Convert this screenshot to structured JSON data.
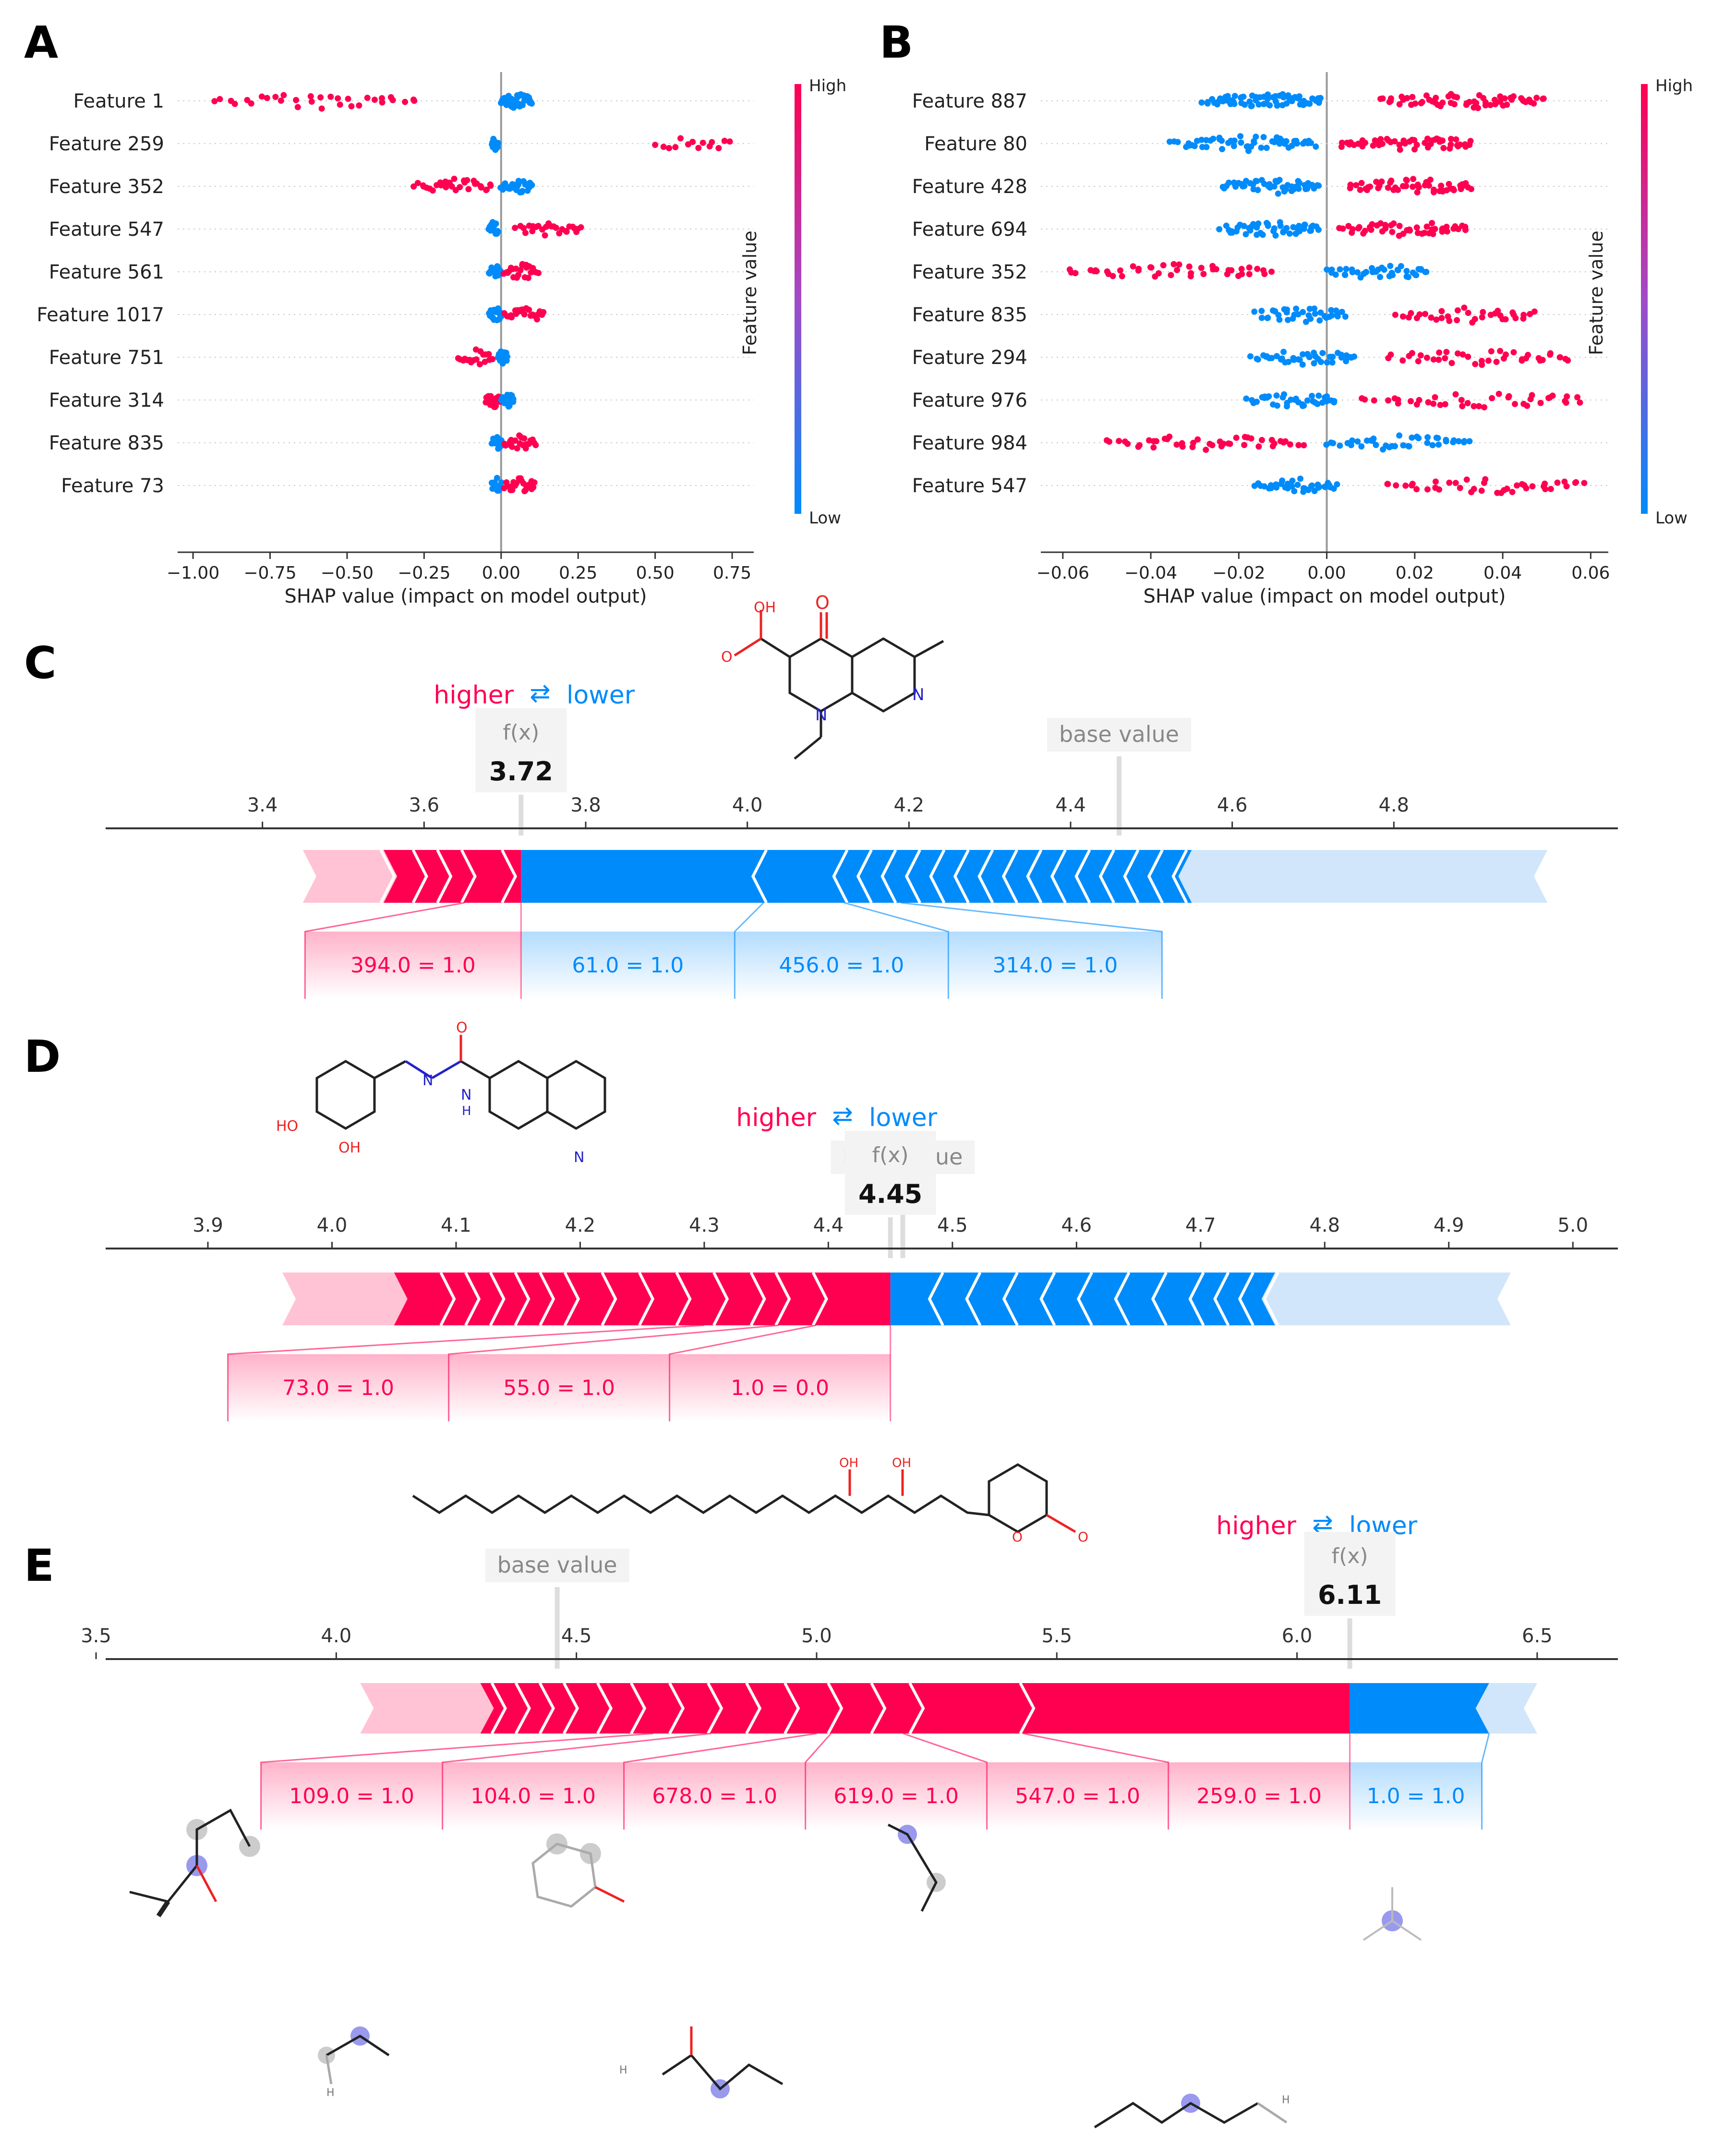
{
  "colors": {
    "pos": "#ff0051",
    "neg": "#008bfb",
    "pos_light": "#ffc3d5",
    "neg_light": "#d1e6fa",
    "axis": "#333333",
    "grid": "#cccccc",
    "muted": "#888888"
  },
  "panel_labels": [
    "A",
    "B",
    "C",
    "D",
    "E"
  ],
  "chart_data": [
    {
      "panel": "A",
      "type": "scatter",
      "subtype": "shap-beeswarm",
      "features": [
        "Feature 1",
        "Feature 259",
        "Feature 352",
        "Feature 547",
        "Feature 561",
        "Feature 1017",
        "Feature 751",
        "Feature 314",
        "Feature 835",
        "Feature 73"
      ],
      "clusters": [
        [
          {
            "c": "pos",
            "from": -0.93,
            "to": -0.28,
            "n": 32
          },
          {
            "c": "neg",
            "from": 0.0,
            "to": 0.1,
            "n": 40
          }
        ],
        [
          {
            "c": "neg",
            "from": -0.03,
            "to": -0.01,
            "n": 14
          },
          {
            "c": "pos",
            "from": 0.5,
            "to": 0.74,
            "n": 14
          }
        ],
        [
          {
            "c": "pos",
            "from": -0.28,
            "to": -0.03,
            "n": 30
          },
          {
            "c": "neg",
            "from": 0.0,
            "to": 0.1,
            "n": 28
          }
        ],
        [
          {
            "c": "neg",
            "from": -0.04,
            "to": -0.01,
            "n": 14
          },
          {
            "c": "pos",
            "from": 0.05,
            "to": 0.26,
            "n": 26
          }
        ],
        [
          {
            "c": "neg",
            "from": -0.04,
            "to": 0.0,
            "n": 18
          },
          {
            "c": "pos",
            "from": 0.01,
            "to": 0.12,
            "n": 24
          }
        ],
        [
          {
            "c": "neg",
            "from": -0.04,
            "to": 0.0,
            "n": 18
          },
          {
            "c": "pos",
            "from": 0.01,
            "to": 0.14,
            "n": 24
          }
        ],
        [
          {
            "c": "pos",
            "from": -0.14,
            "to": -0.03,
            "n": 18
          },
          {
            "c": "neg",
            "from": -0.01,
            "to": 0.02,
            "n": 16
          }
        ],
        [
          {
            "c": "pos",
            "from": -0.05,
            "to": 0.0,
            "n": 24
          },
          {
            "c": "neg",
            "from": 0.0,
            "to": 0.04,
            "n": 20
          }
        ],
        [
          {
            "c": "neg",
            "from": -0.03,
            "to": 0.0,
            "n": 16
          },
          {
            "c": "pos",
            "from": 0.01,
            "to": 0.11,
            "n": 22
          }
        ],
        [
          {
            "c": "neg",
            "from": -0.03,
            "to": 0.0,
            "n": 16
          },
          {
            "c": "pos",
            "from": 0.01,
            "to": 0.11,
            "n": 22
          }
        ]
      ],
      "xlim": [
        -1.05,
        0.82
      ],
      "xticks": [
        -1.0,
        -0.75,
        -0.5,
        -0.25,
        0.0,
        0.25,
        0.5,
        0.75
      ],
      "xtick_labels": [
        "−1.00",
        "−0.75",
        "−0.50",
        "−0.25",
        "0.00",
        "0.25",
        "0.50",
        "0.75"
      ],
      "xlabel": "SHAP value (impact on model output)",
      "colorbar_title": "Feature value",
      "colorbar_high": "High",
      "colorbar_low": "Low"
    },
    {
      "panel": "B",
      "type": "scatter",
      "subtype": "shap-beeswarm",
      "features": [
        "Feature 887",
        "Feature 80",
        "Feature 428",
        "Feature 694",
        "Feature 352",
        "Feature 835",
        "Feature 294",
        "Feature 976",
        "Feature 984",
        "Feature 547"
      ],
      "clusters": [
        [
          {
            "c": "neg",
            "from": -0.028,
            "to": -0.001,
            "n": 70
          },
          {
            "c": "pos",
            "from": 0.012,
            "to": 0.049,
            "n": 60
          }
        ],
        [
          {
            "c": "neg",
            "from": -0.035,
            "to": -0.003,
            "n": 56
          },
          {
            "c": "pos",
            "from": 0.003,
            "to": 0.033,
            "n": 52
          }
        ],
        [
          {
            "c": "neg",
            "from": -0.024,
            "to": -0.002,
            "n": 48
          },
          {
            "c": "pos",
            "from": 0.005,
            "to": 0.033,
            "n": 50
          }
        ],
        [
          {
            "c": "neg",
            "from": -0.024,
            "to": -0.002,
            "n": 48
          },
          {
            "c": "pos",
            "from": 0.003,
            "to": 0.032,
            "n": 48
          }
        ],
        [
          {
            "c": "pos",
            "from": -0.059,
            "to": -0.013,
            "n": 44
          },
          {
            "c": "neg",
            "from": 0.0,
            "to": 0.023,
            "n": 40
          }
        ],
        [
          {
            "c": "neg",
            "from": -0.016,
            "to": 0.004,
            "n": 36
          },
          {
            "c": "pos",
            "from": 0.016,
            "to": 0.047,
            "n": 34
          }
        ],
        [
          {
            "c": "neg",
            "from": -0.017,
            "to": 0.006,
            "n": 40
          },
          {
            "c": "pos",
            "from": 0.014,
            "to": 0.055,
            "n": 40
          }
        ],
        [
          {
            "c": "neg",
            "from": -0.018,
            "to": 0.002,
            "n": 36
          },
          {
            "c": "pos",
            "from": 0.008,
            "to": 0.058,
            "n": 40
          }
        ],
        [
          {
            "c": "pos",
            "from": -0.05,
            "to": -0.006,
            "n": 44
          },
          {
            "c": "neg",
            "from": 0.0,
            "to": 0.032,
            "n": 40
          }
        ],
        [
          {
            "c": "neg",
            "from": -0.016,
            "to": 0.002,
            "n": 36
          },
          {
            "c": "pos",
            "from": 0.013,
            "to": 0.058,
            "n": 40
          }
        ]
      ],
      "xlim": [
        -0.065,
        0.064
      ],
      "xticks": [
        -0.06,
        -0.04,
        -0.02,
        0.0,
        0.02,
        0.04,
        0.06
      ],
      "xtick_labels": [
        "−0.06",
        "−0.04",
        "−0.02",
        "0.00",
        "0.02",
        "0.04",
        "0.06"
      ],
      "xlabel": "SHAP value (impact on model output)",
      "colorbar_title": "Feature value",
      "colorbar_high": "High",
      "colorbar_low": "Low"
    },
    {
      "panel": "C",
      "type": "bar",
      "subtype": "shap-force",
      "legend_higher": "higher",
      "legend_arrows": "⇄",
      "legend_lower": "lower",
      "fx_label": "f(x)",
      "fx_value": 3.72,
      "fx_text": "3.72",
      "base_label": "base value",
      "base_value": 4.46,
      "axis_min": 3.2,
      "axis_max": 5.0,
      "ticks": [
        3.4,
        3.6,
        3.8,
        4.0,
        4.2,
        4.4,
        4.6,
        4.8
      ],
      "tick_labels": [
        "3.4",
        "3.6",
        "3.8",
        "4.0",
        "4.2",
        "4.4",
        "4.6",
        "4.8"
      ],
      "pos_range": [
        3.45,
        3.72
      ],
      "neg_range": [
        3.72,
        4.99
      ],
      "pos_light_until": 3.55,
      "neg_light_from": 4.55,
      "pos_segments": [
        3.55,
        3.59,
        3.62,
        3.65,
        3.7
      ],
      "neg_segments": [
        4.02,
        4.12,
        4.15,
        4.18,
        4.21,
        4.24,
        4.27,
        4.3,
        4.33,
        4.36,
        4.39,
        4.42,
        4.45,
        4.48,
        4.51,
        4.54
      ],
      "pos_labels": [
        {
          "text": "394.0 = 1.0",
          "val": 3.65
        }
      ],
      "neg_labels": [
        {
          "text": "61.0 = 1.0",
          "val": 4.02
        },
        {
          "text": "456.0 = 1.0",
          "val": 4.12
        },
        {
          "text": "314.0 = 1.0",
          "val": 4.19
        }
      ]
    },
    {
      "panel": "D",
      "type": "bar",
      "subtype": "shap-force",
      "legend_higher": "higher",
      "legend_arrows": "⇄",
      "legend_lower": "lower",
      "fx_label": "f(x)",
      "fx_value": 4.45,
      "fx_text": "4.45",
      "base_label": "base value",
      "base_value": 4.46,
      "axis_min": 3.77,
      "axis_max": 5.08,
      "ticks": [
        3.9,
        4.0,
        4.1,
        4.2,
        4.3,
        4.4,
        4.5,
        4.6,
        4.7,
        4.8,
        4.9,
        5.0
      ],
      "tick_labels": [
        "3.9",
        "4.0",
        "4.1",
        "4.2",
        "4.3",
        "4.4",
        "4.5",
        "4.6",
        "4.7",
        "4.8",
        "4.9",
        "5.0"
      ],
      "pos_range": [
        3.96,
        4.45
      ],
      "neg_range": [
        4.45,
        4.95
      ],
      "pos_light_until": 4.05,
      "neg_light_from": 4.76,
      "pos_segments": [
        4.09,
        4.11,
        4.13,
        4.15,
        4.17,
        4.19,
        4.22,
        4.25,
        4.28,
        4.31,
        4.34,
        4.36,
        4.39
      ],
      "neg_segments": [
        4.49,
        4.52,
        4.55,
        4.58,
        4.61,
        4.64,
        4.67,
        4.7,
        4.72,
        4.74,
        4.76
      ],
      "pos_labels": [
        {
          "text": "73.0 = 1.0",
          "val": 4.3
        },
        {
          "text": "55.0 = 1.0",
          "val": 4.36
        },
        {
          "text": "1.0 = 0.0",
          "val": 4.39
        }
      ],
      "neg_labels": []
    },
    {
      "panel": "E",
      "type": "bar",
      "subtype": "shap-force",
      "legend_higher": "higher",
      "legend_arrows": "⇄",
      "legend_lower": "lower",
      "fx_label": "f(x)",
      "fx_value": 6.11,
      "fx_text": "6.11",
      "base_label": "base value",
      "base_value": 4.46,
      "axis_min": 3.4,
      "axis_max": 6.76,
      "ticks": [
        3.5,
        4.0,
        4.5,
        5.0,
        5.5,
        6.0,
        6.5
      ],
      "tick_labels": [
        "3.5",
        "4.0",
        "4.5",
        "5.0",
        "5.5",
        "6.0",
        "6.5"
      ],
      "pos_range": [
        4.05,
        6.11
      ],
      "neg_range": [
        6.11,
        6.5
      ],
      "pos_light_until": 4.3,
      "neg_light_from": 6.4,
      "pos_segments": [
        4.33,
        4.38,
        4.43,
        4.48,
        4.55,
        4.62,
        4.7,
        4.78,
        4.86,
        4.94,
        5.03,
        5.12,
        5.2,
        5.43
      ],
      "neg_segments": [],
      "pos_labels": [
        {
          "text": "109.0 = 1.0",
          "val": 4.66
        },
        {
          "text": "104.0 = 1.0",
          "val": 4.78
        },
        {
          "text": "678.0 = 1.0",
          "val": 5.0
        },
        {
          "text": "619.0 = 1.0",
          "val": 5.03
        },
        {
          "text": "547.0 = 1.0",
          "val": 5.18
        },
        {
          "text": "259.0 = 1.0",
          "val": 5.43
        }
      ],
      "neg_labels": [
        {
          "text": "1.0 = 1.0",
          "val": 6.4
        }
      ]
    }
  ],
  "molecules": {
    "C_labels": [
      "OH",
      "O",
      "O",
      "N",
      "N"
    ],
    "D_labels": [
      "HO",
      "OH",
      "N",
      "N",
      "H",
      "O",
      "N"
    ],
    "E_labels": [
      "OH",
      "OH",
      "O",
      "O"
    ],
    "fragment_labels": [
      "H",
      "H",
      "H"
    ]
  }
}
